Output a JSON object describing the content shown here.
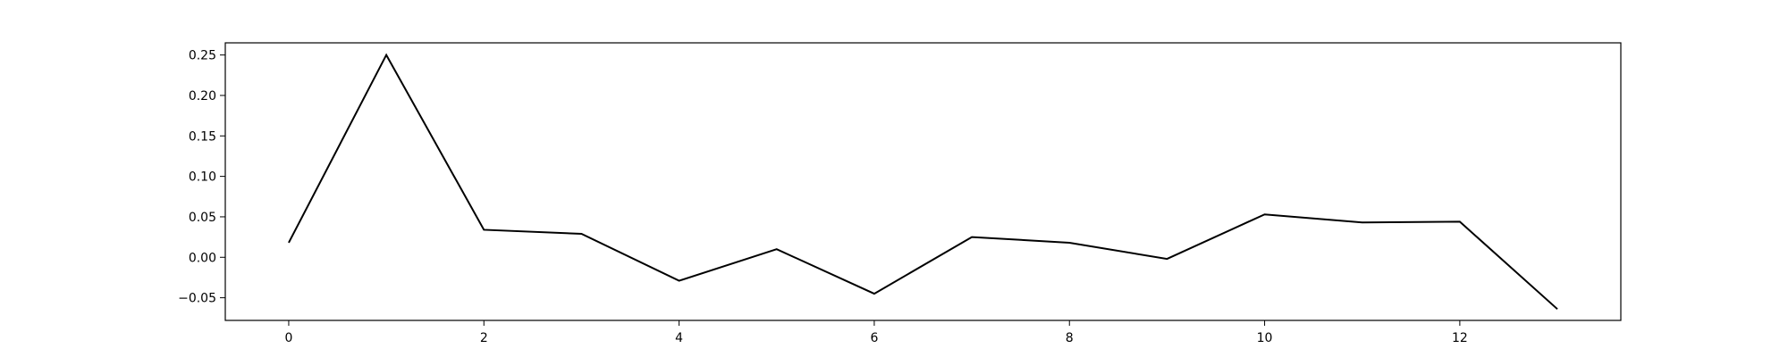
{
  "chart_data": {
    "type": "line",
    "title": "",
    "xlabel": "",
    "ylabel": "",
    "xlim": [
      -0.65,
      13.65
    ],
    "ylim": [
      -0.078,
      0.265
    ],
    "x_ticks": [
      0,
      2,
      4,
      6,
      8,
      10,
      12
    ],
    "y_ticks": [
      -0.05,
      0.0,
      0.05,
      0.1,
      0.15,
      0.2,
      0.25
    ],
    "x_tick_labels": [
      "0",
      "2",
      "4",
      "6",
      "8",
      "10",
      "12"
    ],
    "y_tick_labels": [
      "−0.05",
      "0.00",
      "0.05",
      "0.10",
      "0.15",
      "0.20",
      "0.25"
    ],
    "grid": false,
    "legend": "none",
    "series": [
      {
        "color": "#000000",
        "x": [
          0,
          1,
          2,
          3,
          4,
          5,
          6,
          7,
          8,
          9,
          10,
          11,
          12,
          13
        ],
        "values": [
          0.018,
          0.25,
          0.034,
          0.029,
          -0.029,
          0.01,
          -0.045,
          0.025,
          0.018,
          -0.002,
          0.053,
          0.043,
          0.044,
          -0.064
        ]
      }
    ]
  }
}
